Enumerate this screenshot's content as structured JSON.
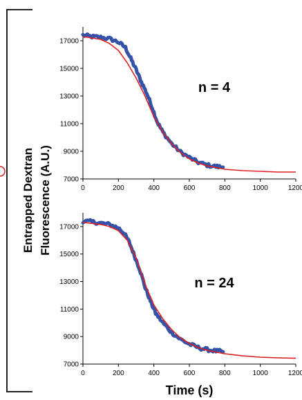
{
  "figure": {
    "ylabel_line1": "Entrapped Dextran",
    "ylabel_line2": "Fluorescence (A.U.)",
    "xlabel": "Time (s)",
    "data_color": "#3352a8",
    "fit_color": "#dd2020",
    "frame_color": "#222222"
  },
  "chart_data": [
    {
      "type": "line",
      "annotation": "n = 4",
      "xlim": [
        0,
        1200
      ],
      "ylim": [
        7000,
        18000
      ],
      "xticks": [
        0,
        200,
        400,
        600,
        800,
        1000,
        1200
      ],
      "yticks": [
        7000,
        9000,
        11000,
        13000,
        15000,
        17000
      ],
      "xlabel": "",
      "ylabel": "",
      "grid": false,
      "series": [
        {
          "role": "measured",
          "color": "#3352a8",
          "x": [
            0,
            50,
            100,
            150,
            200,
            240,
            270,
            300,
            330,
            360,
            390,
            420,
            450,
            500,
            550,
            600,
            650,
            700,
            750,
            790
          ],
          "y": [
            17400,
            17300,
            17250,
            17150,
            16900,
            16500,
            15700,
            14900,
            14000,
            13200,
            12200,
            11100,
            10400,
            9550,
            8950,
            8550,
            8200,
            8000,
            7900,
            7850
          ]
        },
        {
          "role": "fit",
          "color": "#dd2020",
          "x": [
            0,
            100,
            150,
            200,
            250,
            300,
            350,
            400,
            450,
            500,
            550,
            600,
            650,
            700,
            800,
            900,
            1000,
            1100,
            1200
          ],
          "y": [
            17300,
            17100,
            16800,
            16300,
            15400,
            14300,
            13000,
            11500,
            10400,
            9550,
            8900,
            8450,
            8150,
            7950,
            7700,
            7600,
            7550,
            7500,
            7500
          ]
        }
      ]
    },
    {
      "type": "line",
      "annotation": "n = 24",
      "xlim": [
        0,
        1200
      ],
      "ylim": [
        7000,
        18000
      ],
      "xticks": [
        0,
        200,
        400,
        600,
        800,
        1000,
        1200
      ],
      "yticks": [
        7000,
        9000,
        11000,
        13000,
        15000,
        17000
      ],
      "xlabel": "Time (s)",
      "ylabel": "",
      "grid": false,
      "series": [
        {
          "role": "measured",
          "color": "#3352a8",
          "x": [
            0,
            50,
            100,
            150,
            200,
            230,
            260,
            290,
            320,
            350,
            380,
            410,
            450,
            500,
            550,
            600,
            650,
            700,
            750,
            790
          ],
          "y": [
            17400,
            17350,
            17250,
            17150,
            16900,
            16550,
            15900,
            14900,
            13900,
            12600,
            11600,
            10700,
            10000,
            9300,
            8800,
            8450,
            8200,
            8050,
            7950,
            7900
          ]
        },
        {
          "role": "fit",
          "color": "#dd2020",
          "x": [
            0,
            100,
            150,
            200,
            250,
            300,
            330,
            360,
            400,
            450,
            500,
            550,
            600,
            650,
            700,
            800,
            900,
            1000,
            1100,
            1200
          ],
          "y": [
            17300,
            17150,
            17000,
            16700,
            16000,
            14700,
            13600,
            12500,
            11300,
            10300,
            9500,
            8900,
            8500,
            8200,
            8000,
            7750,
            7600,
            7500,
            7450,
            7420
          ]
        }
      ]
    }
  ]
}
